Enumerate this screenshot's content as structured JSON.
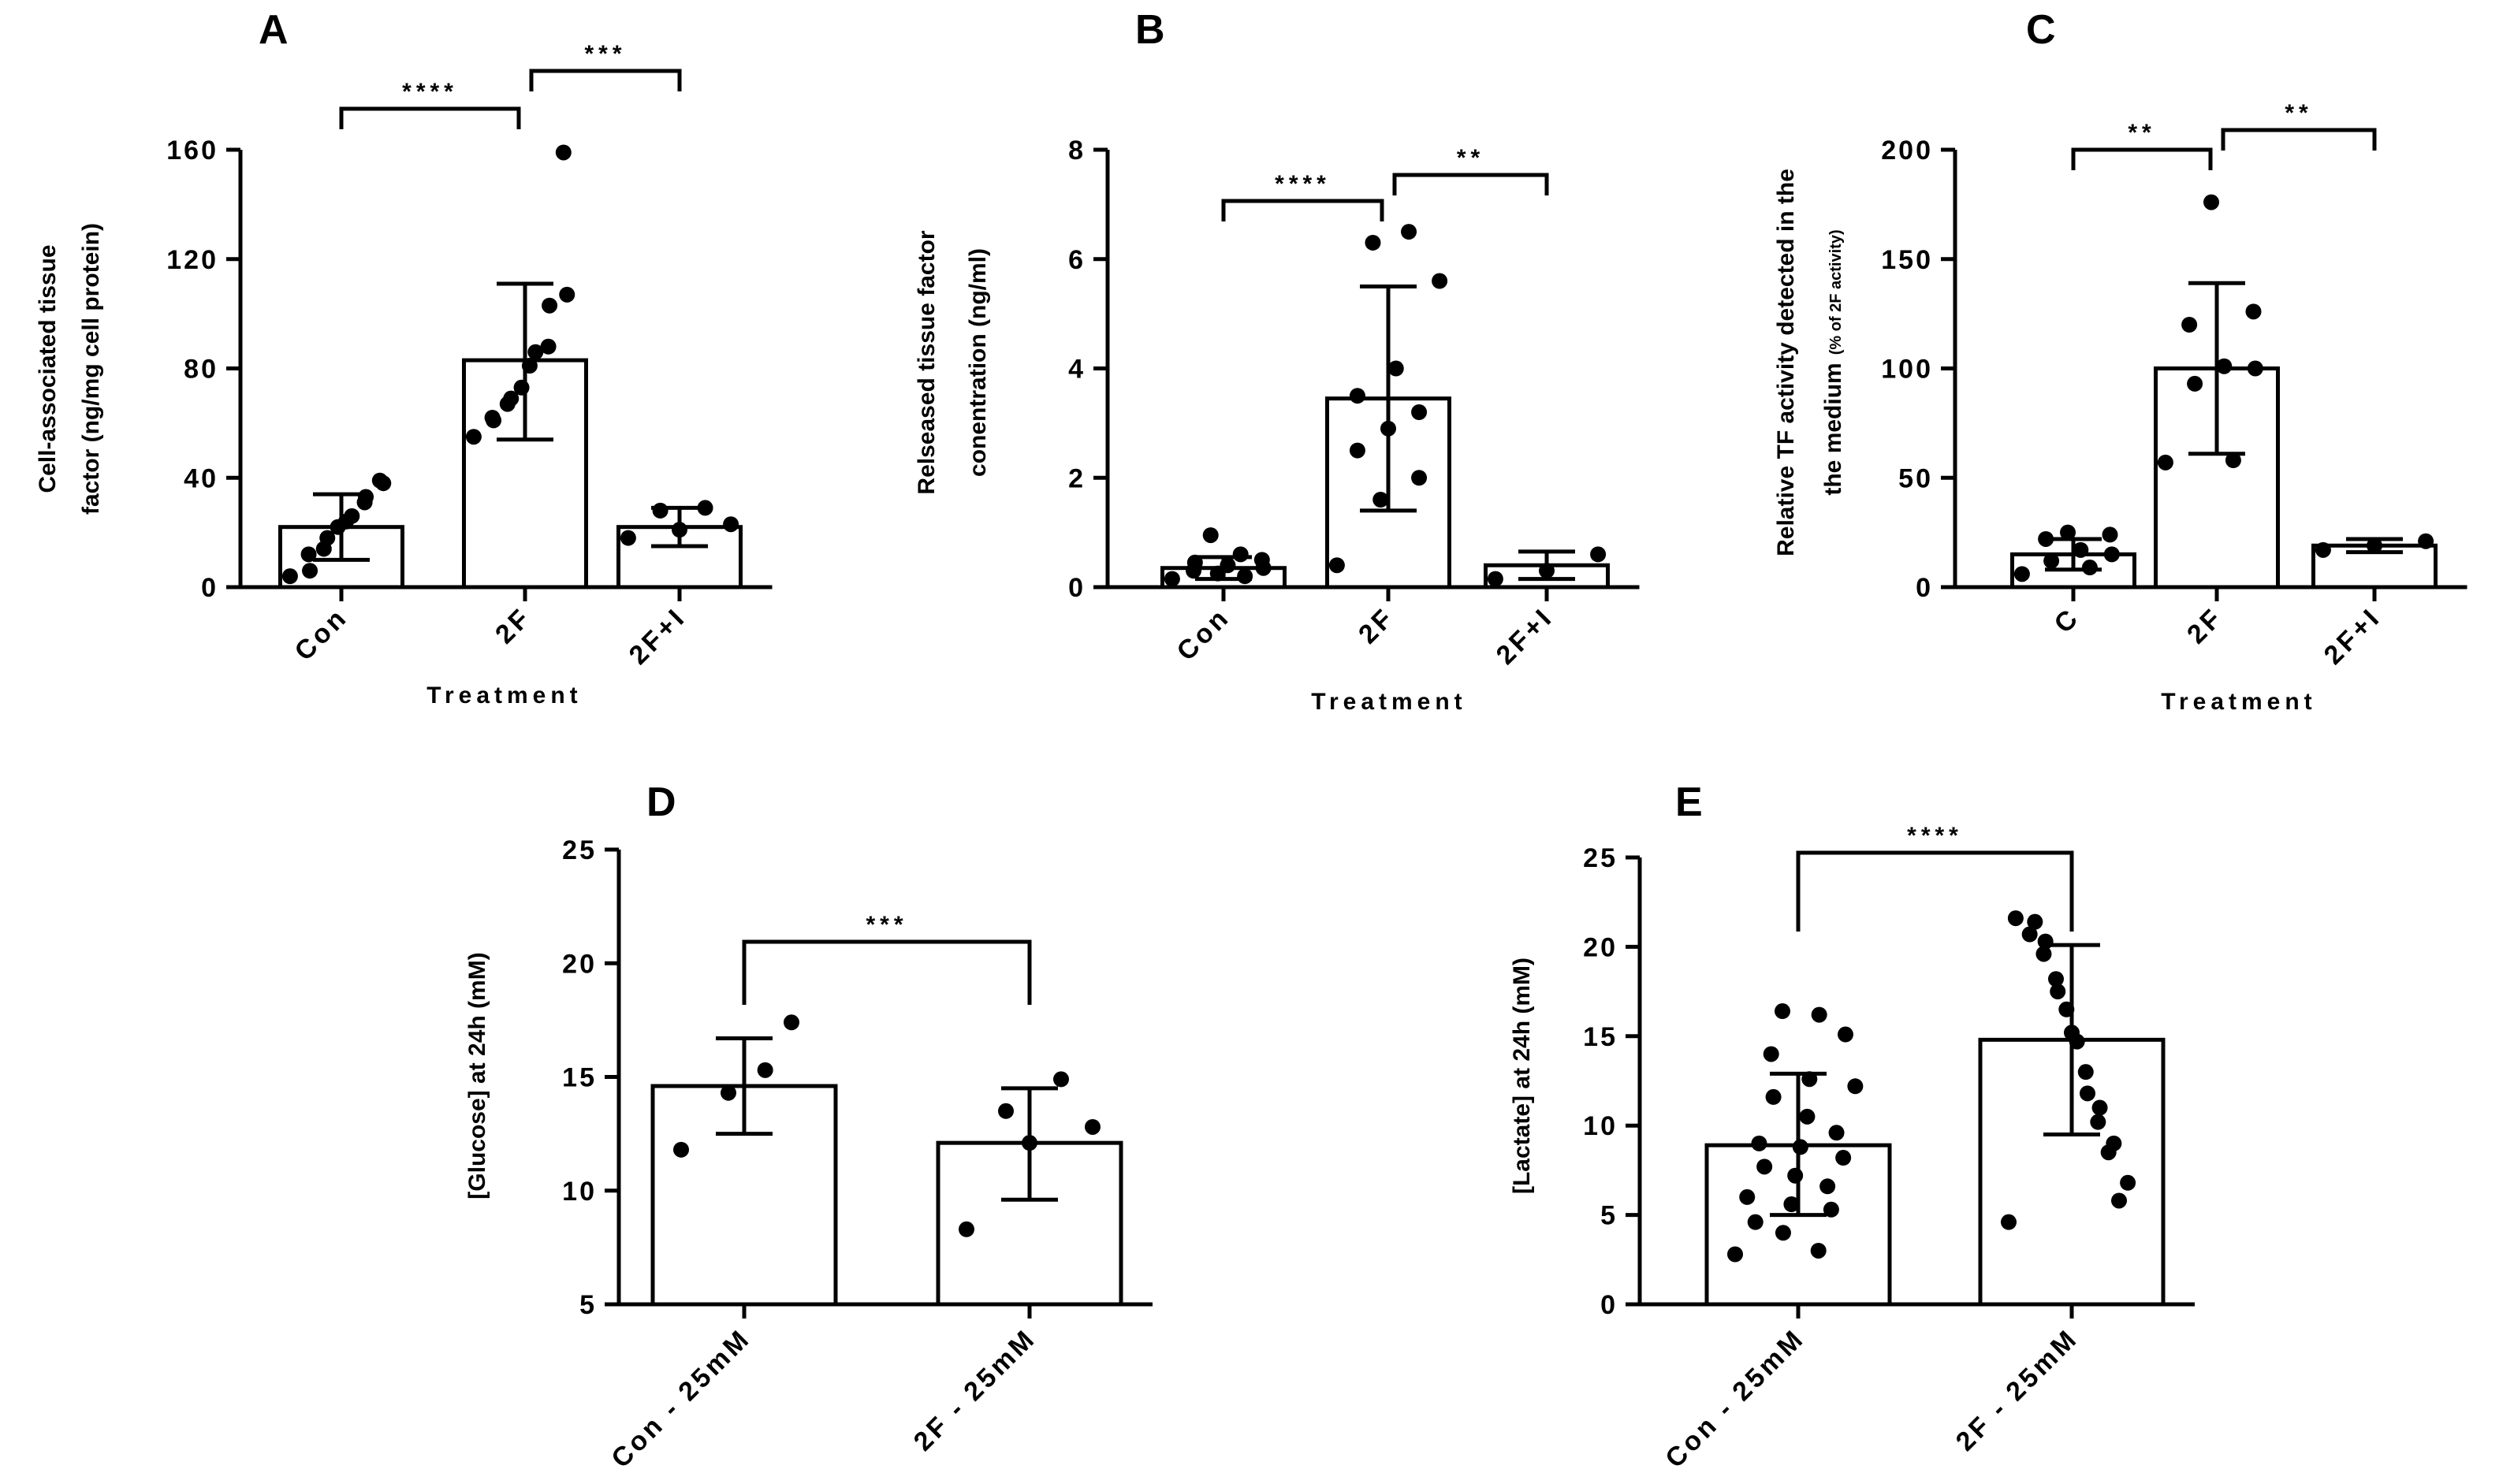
{
  "chart_data": [
    {
      "id": "A",
      "type": "bar",
      "panel_label": "A",
      "ylabel_lines": [
        "Cell-associated tissue",
        "factor (ng/mg cell protein)"
      ],
      "xlabel": "Treatment",
      "categories": [
        "Con",
        "2F",
        "2F+I"
      ],
      "ylim": [
        0,
        160
      ],
      "yticks": [
        0,
        40,
        80,
        120,
        160
      ],
      "means": [
        22,
        83,
        22
      ],
      "errors": [
        {
          "low": 10,
          "high": 34
        },
        {
          "low": 54,
          "high": 111
        },
        {
          "low": 15,
          "high": 29
        }
      ],
      "points": [
        [
          4,
          6,
          12,
          14,
          18,
          22,
          24,
          26,
          31,
          33,
          38,
          39
        ],
        [
          55,
          61,
          62,
          67,
          69,
          73,
          81,
          86,
          88,
          103,
          107,
          159
        ],
        [
          18,
          21,
          23,
          28,
          29
        ]
      ],
      "brackets": [
        {
          "from": 0,
          "to": 1,
          "label": "****"
        },
        {
          "from": 1,
          "to": 2,
          "label": "***"
        }
      ]
    },
    {
      "id": "B",
      "type": "bar",
      "panel_label": "B",
      "ylabel_lines": [
        "Relseased tissue factor",
        "conentration (ng/ml)"
      ],
      "xlabel": "Treatment",
      "categories": [
        "Con",
        "2F",
        "2F+I"
      ],
      "ylim": [
        0,
        8
      ],
      "yticks": [
        0,
        2,
        4,
        6,
        8
      ],
      "means": [
        0.35,
        3.45,
        0.4
      ],
      "errors": [
        {
          "low": 0.15,
          "high": 0.55
        },
        {
          "low": 1.4,
          "high": 5.5
        },
        {
          "low": 0.15,
          "high": 0.65
        }
      ],
      "points": [
        [
          0.15,
          0.2,
          0.25,
          0.3,
          0.35,
          0.4,
          0.45,
          0.5,
          0.6,
          0.95
        ],
        [
          0.4,
          1.6,
          2.0,
          2.5,
          2.9,
          3.2,
          3.5,
          4.0,
          5.6,
          6.3,
          6.5
        ],
        [
          0.15,
          0.3,
          0.6
        ]
      ],
      "brackets": [
        {
          "from": 0,
          "to": 1,
          "label": "****"
        },
        {
          "from": 1,
          "to": 2,
          "label": "**"
        }
      ]
    },
    {
      "id": "C",
      "type": "bar",
      "panel_label": "C",
      "ylabel_lines": [
        "Relative TF activity detected in the",
        "the medium"
      ],
      "ylabel_suffix": "(% of 2F activity)",
      "xlabel": "Treatment",
      "categories": [
        "C",
        "2F",
        "2F+I"
      ],
      "ylim": [
        0,
        200
      ],
      "yticks": [
        0,
        50,
        100,
        150,
        200
      ],
      "means": [
        15,
        100,
        19
      ],
      "errors": [
        {
          "low": 8,
          "high": 22
        },
        {
          "low": 61,
          "high": 139
        },
        {
          "low": 16,
          "high": 22
        }
      ],
      "points": [
        [
          6,
          9,
          12,
          15,
          17,
          22,
          24,
          25
        ],
        [
          57,
          58,
          93,
          100,
          101,
          120,
          126,
          176
        ],
        [
          17,
          19,
          21
        ]
      ],
      "brackets": [
        {
          "from": 0,
          "to": 1,
          "label": "**"
        },
        {
          "from": 1,
          "to": 2,
          "label": "**"
        }
      ]
    },
    {
      "id": "D",
      "type": "bar",
      "panel_label": "D",
      "ylabel_lines": [
        "[Glucose] at 24h (mM)"
      ],
      "xlabel": "",
      "categories": [
        "Con - 25mM",
        "2F - 25mM"
      ],
      "ylim": [
        5,
        25
      ],
      "yticks": [
        5,
        10,
        15,
        20,
        25
      ],
      "means": [
        14.6,
        12.1
      ],
      "errors": [
        {
          "low": 12.5,
          "high": 16.7
        },
        {
          "low": 9.6,
          "high": 14.5
        }
      ],
      "points": [
        [
          11.8,
          14.3,
          15.3,
          17.4
        ],
        [
          8.3,
          12.1,
          12.8,
          13.5,
          14.9
        ]
      ],
      "brackets": [
        {
          "from": 0,
          "to": 1,
          "label": "***"
        }
      ]
    },
    {
      "id": "E",
      "type": "bar",
      "panel_label": "E",
      "ylabel_lines": [
        "[Lactate] at 24h (mM)"
      ],
      "xlabel": "",
      "categories": [
        "Con - 25mM",
        "2F - 25mM"
      ],
      "ylim": [
        0,
        25
      ],
      "yticks": [
        0,
        5,
        10,
        15,
        20,
        25
      ],
      "means": [
        8.9,
        14.8
      ],
      "errors": [
        {
          "low": 5.0,
          "high": 12.9
        },
        {
          "low": 9.5,
          "high": 20.1
        }
      ],
      "points": [
        [
          2.8,
          3.0,
          4.0,
          4.6,
          5.3,
          5.6,
          6.0,
          6.6,
          7.2,
          7.7,
          8.2,
          8.8,
          9.0,
          9.6,
          10.5,
          11.6,
          12.2,
          12.6,
          14.0,
          15.1,
          16.2,
          16.4
        ],
        [
          4.6,
          5.8,
          6.8,
          8.5,
          9.0,
          10.2,
          11.0,
          11.8,
          13.0,
          14.7,
          15.2,
          16.5,
          17.5,
          18.2,
          19.6,
          20.3,
          20.7,
          21.4,
          21.6
        ]
      ],
      "brackets": [
        {
          "from": 0,
          "to": 1,
          "label": "****"
        }
      ]
    }
  ]
}
